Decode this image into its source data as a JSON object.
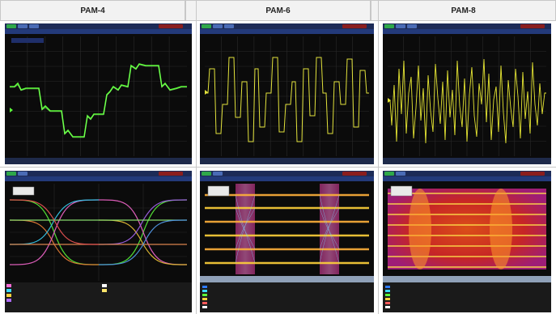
{
  "headers": [
    "PAM-4",
    "PAM-6",
    "PAM-8"
  ],
  "colors": {
    "pam4_trace": "#5cff3a",
    "pam6_trace": "#e2e23c",
    "pam8_trace": "#e6e633",
    "screen_bg": "#0b0b0b",
    "toolbar_bg": "#1d2b57"
  },
  "icons": [
    "run-button-icon",
    "menu-icon",
    "scroll-arrow-icon"
  ]
}
